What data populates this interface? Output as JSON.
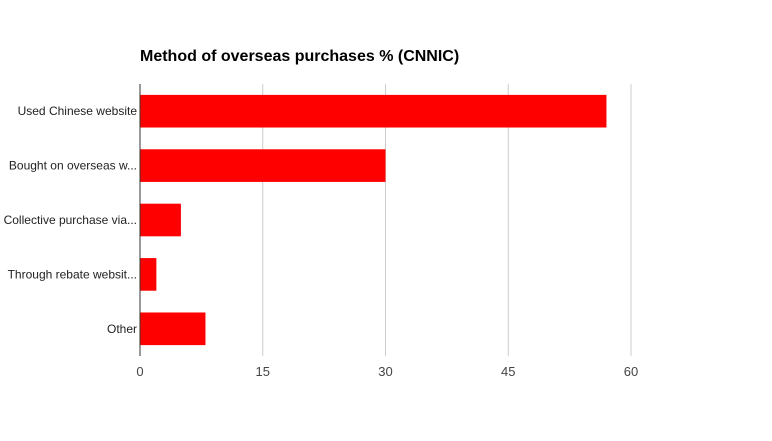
{
  "chart_data": {
    "type": "bar",
    "orientation": "horizontal",
    "title": "Method of overseas purchases % (CNNIC)",
    "categories": [
      "Used Chinese website",
      "Bought on overseas w...",
      "Collective purchase via...",
      "Through rebate websit...",
      "Other"
    ],
    "values": [
      57,
      30,
      5,
      2,
      8
    ],
    "xlabel": "",
    "ylabel": "",
    "xlim": [
      0,
      65
    ],
    "xticks": [
      0,
      15,
      30,
      45,
      60
    ],
    "grid": true,
    "legend": "none",
    "bar_color": "#ff0000"
  }
}
